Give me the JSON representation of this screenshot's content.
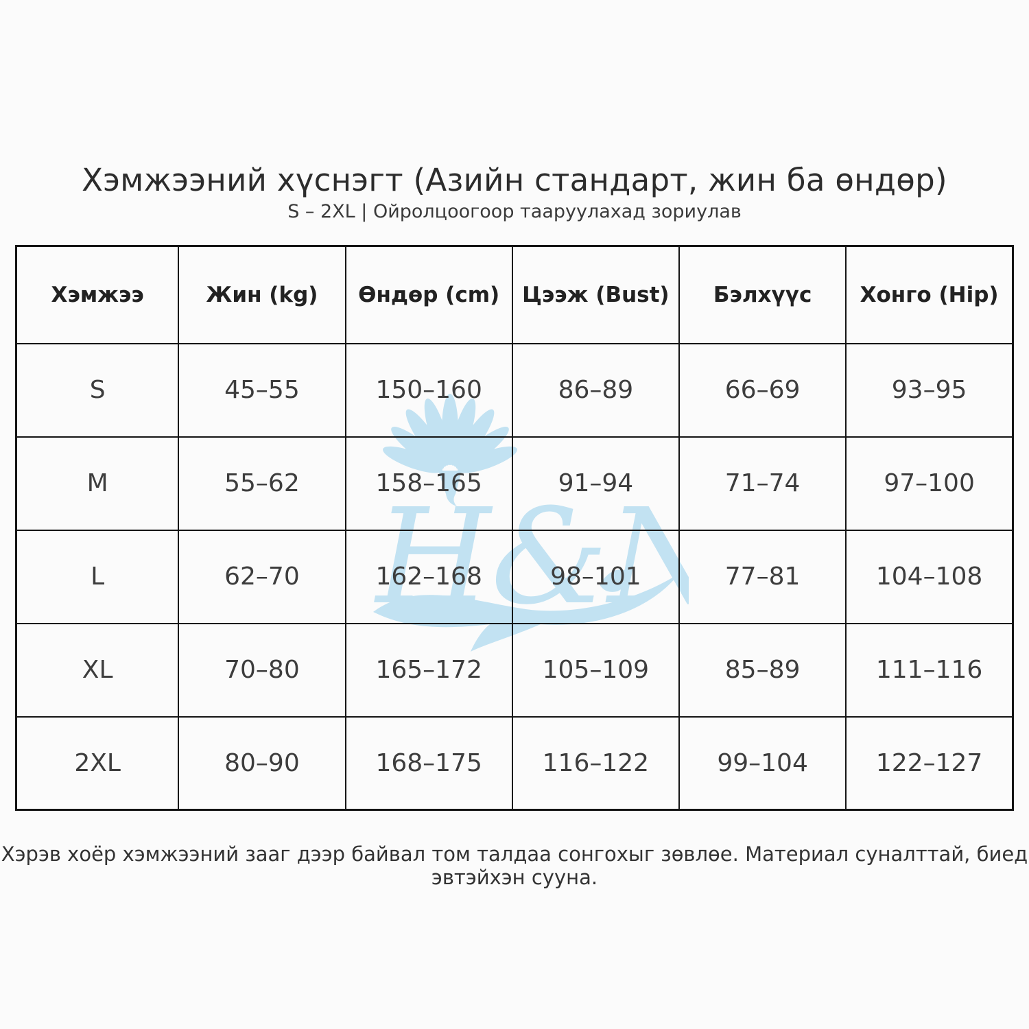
{
  "page": {
    "title": "Хэмжээний хүснэгт (Азийн стандарт, жин ба өндөр)",
    "subtitle": "S – 2XL | Ойролцоогоор тааруулахад зориулав",
    "footer_note": "Хэрэв хоёр хэмжээний зааг дээр байвал том талдаа сонгохыг зөвлөе. Материал суналттай, биед эвтэйхэн сууна."
  },
  "watermark": {
    "brand": "H&N",
    "icon": "scallop-shell-and-wave",
    "color": "#c2e2f2"
  },
  "chart_data": {
    "type": "table",
    "title": "Хэмжээний хүснэгт (Азийн стандарт, жин ба өндөр)",
    "columns": [
      "Хэмжээ",
      "Жин (kg)",
      "Өндөр (cm)",
      "Цээж (Bust)",
      "Бэлхүүс",
      "Хонго (Hip)"
    ],
    "rows": [
      [
        "S",
        "45–55",
        "150–160",
        "86–89",
        "66–69",
        "93–95"
      ],
      [
        "M",
        "55–62",
        "158–165",
        "91–94",
        "71–74",
        "97–100"
      ],
      [
        "L",
        "62–70",
        "162–168",
        "98–101",
        "77–81",
        "104–108"
      ],
      [
        "XL",
        "70–80",
        "165–172",
        "105–109",
        "85–89",
        "111–116"
      ],
      [
        "2XL",
        "80–90",
        "168–175",
        "116–122",
        "99–104",
        "122–127"
      ]
    ]
  },
  "table": {
    "columns": [
      "Хэмжээ",
      "Жин (kg)",
      "Өндөр (cm)",
      "Цээж (Bust)",
      "Бэлхүүс",
      "Хонго (Hip)"
    ],
    "rows": [
      [
        "S",
        "45–55",
        "150–160",
        "86–89",
        "66–69",
        "93–95"
      ],
      [
        "M",
        "55–62",
        "158–165",
        "91–94",
        "71–74",
        "97–100"
      ],
      [
        "L",
        "62–70",
        "162–168",
        "98–101",
        "77–81",
        "104–108"
      ],
      [
        "XL",
        "70–80",
        "165–172",
        "105–109",
        "85–89",
        "111–116"
      ],
      [
        "2XL",
        "80–90",
        "168–175",
        "116–122",
        "99–104",
        "122–127"
      ]
    ]
  }
}
